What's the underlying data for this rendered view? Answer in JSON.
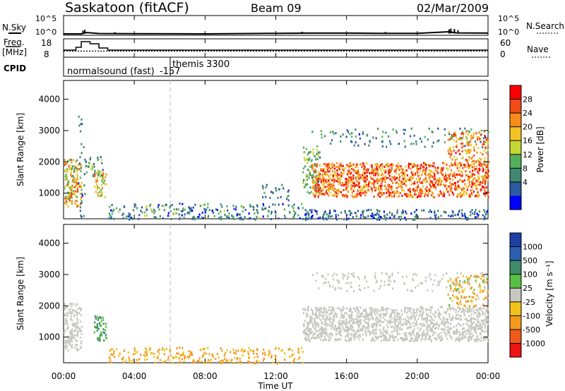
{
  "header": {
    "station": "Saskatoon (fitACF)",
    "beam": "Beam 09",
    "date": "02/Mar/2009"
  },
  "panels": {
    "noise": {
      "left_label": "N.Sky",
      "right_label": "N.Search",
      "left_ticks": [
        "10^5",
        "10^0"
      ],
      "right_ticks": [
        "10^5",
        "10^0"
      ]
    },
    "freq": {
      "left_label": "Freq.",
      "left_unit": "[MHz]",
      "right_label": "Nave",
      "left_ticks": [
        "18",
        "8"
      ],
      "right_ticks": [
        "60",
        "0"
      ]
    },
    "cpid": {
      "label": "CPID",
      "mode1": "normalsound (fast)",
      "mode1_id": "-157",
      "mode2": "themis",
      "mode2_id": "3300"
    },
    "power": {
      "ylabel": "Slant Range [km]",
      "colorbar_label": "Power [dB]",
      "colorbar_ticks": [
        "28",
        "24",
        "20",
        "16",
        "12",
        "8",
        "4"
      ]
    },
    "velocity": {
      "ylabel": "Slant Range [km]",
      "colorbar_label": "Velocity [m s⁻¹]",
      "colorbar_ticks": [
        "1000",
        "500",
        "100",
        "25",
        "-25",
        "-100",
        "-500",
        "-1000"
      ]
    },
    "xaxis": {
      "label": "Time UT",
      "ticks": [
        "00:00",
        "04:00",
        "08:00",
        "12:00",
        "16:00",
        "20:00",
        "00:00"
      ]
    }
  },
  "chart_data": [
    {
      "type": "line",
      "panel": "noise",
      "x_hours": [
        0,
        1,
        1.3,
        2,
        4,
        8,
        12,
        14,
        16,
        18,
        20,
        21.8,
        22.2,
        24
      ],
      "sky_log10": [
        0.35,
        0.35,
        0.7,
        0.45,
        0.4,
        0.35,
        0.5,
        0.55,
        0.55,
        0.5,
        0.5,
        0.9,
        0.6,
        0.55
      ],
      "ylim": [
        0,
        5
      ]
    },
    {
      "type": "line",
      "panel": "freq",
      "x_hours": [
        0,
        0.7,
        1.0,
        1.5,
        2.0,
        2.5,
        24
      ],
      "freq_mhz": [
        11.5,
        13.5,
        17.5,
        16,
        13,
        11.5,
        11.5
      ],
      "nave_x_hours": [
        0,
        24
      ],
      "nave": [
        18,
        18
      ],
      "ylim_freq": [
        8,
        18
      ],
      "ylim_nave": [
        0,
        60
      ]
    },
    {
      "type": "heatmap",
      "panel": "power",
      "xlim_hours": [
        0,
        24
      ],
      "ylim_km": [
        180,
        4600
      ],
      "zlim_db": [
        0,
        30
      ],
      "scatter_regions": [
        {
          "t": [
            0,
            1.0
          ],
          "r": [
            600,
            2100
          ],
          "db": [
            10,
            26
          ],
          "density": 0.85
        },
        {
          "t": [
            0.8,
            1.2
          ],
          "r": [
            180,
            3500
          ],
          "db": [
            3,
            10
          ],
          "density": 0.15
        },
        {
          "t": [
            1.2,
            2.2
          ],
          "r": [
            1500,
            2200
          ],
          "db": [
            6,
            16
          ],
          "density": 0.4
        },
        {
          "t": [
            1.7,
            2.4
          ],
          "r": [
            900,
            1700
          ],
          "db": [
            10,
            24
          ],
          "density": 0.7
        },
        {
          "t": [
            2.5,
            13.5
          ],
          "r": [
            180,
            700
          ],
          "db": [
            2,
            14
          ],
          "density": 0.35
        },
        {
          "t": [
            11.2,
            12.8
          ],
          "r": [
            800,
            1300
          ],
          "db": [
            4,
            12
          ],
          "density": 0.25
        },
        {
          "t": [
            13.5,
            14.5
          ],
          "r": [
            1000,
            2500
          ],
          "db": [
            6,
            16
          ],
          "density": 0.6
        },
        {
          "t": [
            14,
            24
          ],
          "r": [
            900,
            2000
          ],
          "db": [
            16,
            30
          ],
          "density": 0.9
        },
        {
          "t": [
            14,
            24
          ],
          "r": [
            2500,
            3100
          ],
          "db": [
            3,
            12
          ],
          "density": 0.15
        },
        {
          "t": [
            21.7,
            24
          ],
          "r": [
            2000,
            3000
          ],
          "db": [
            14,
            28
          ],
          "density": 0.5
        },
        {
          "t": [
            13.5,
            24
          ],
          "r": [
            180,
            500
          ],
          "db": [
            2,
            10
          ],
          "density": 0.5
        }
      ]
    },
    {
      "type": "heatmap",
      "panel": "velocity",
      "xlim_hours": [
        0,
        24
      ],
      "ylim_km": [
        180,
        4600
      ],
      "zlim_ms": [
        -1000,
        1000
      ],
      "scatter_regions": [
        {
          "t": [
            0,
            1.0
          ],
          "r": [
            600,
            2100
          ],
          "v": [
            -25,
            25
          ],
          "density": 0.8
        },
        {
          "t": [
            1.7,
            2.4
          ],
          "r": [
            900,
            1700
          ],
          "v": [
            80,
            150
          ],
          "density": 0.7
        },
        {
          "t": [
            2.5,
            13.5
          ],
          "r": [
            180,
            700
          ],
          "v": [
            -250,
            -25
          ],
          "density": 0.35
        },
        {
          "t": [
            13.5,
            24
          ],
          "r": [
            900,
            2000
          ],
          "v": [
            -25,
            25
          ],
          "density": 0.9
        },
        {
          "t": [
            14,
            24
          ],
          "r": [
            2500,
            3100
          ],
          "v": [
            -25,
            25
          ],
          "density": 0.2
        },
        {
          "t": [
            21.7,
            24
          ],
          "r": [
            2000,
            3000
          ],
          "v": [
            -500,
            100
          ],
          "density": 0.4
        }
      ]
    }
  ]
}
